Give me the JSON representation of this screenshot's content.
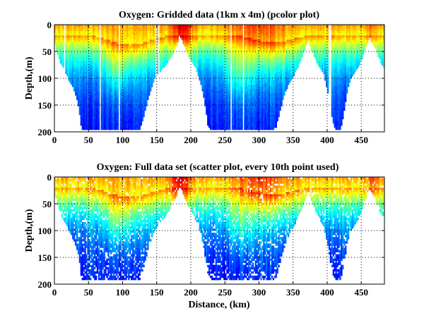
{
  "figure": {
    "xlabel_shared": "Distance, (km)"
  },
  "chart_data": [
    {
      "type": "heatmap",
      "id": "gridded",
      "title": "Oxygen: Gridded data (1km x 4m) (pcolor plot)",
      "xlabel": "",
      "ylabel": "Depth,(m)",
      "xlim": [
        0,
        484
      ],
      "ylim": [
        200,
        0
      ],
      "y_reversed": true,
      "xticks": [
        0,
        50,
        100,
        150,
        200,
        250,
        300,
        350,
        400,
        450
      ],
      "yticks": [
        0,
        50,
        100,
        150,
        200
      ],
      "grid": true,
      "colormap": "jet",
      "resolution": {
        "dx_km": 1,
        "dz_m": 4
      },
      "bottom_depth_profile": {
        "distance_km": [
          0,
          5,
          10,
          15,
          20,
          25,
          30,
          35,
          40,
          45,
          50,
          60,
          70,
          80,
          90,
          100,
          110,
          120,
          125,
          130,
          135,
          140,
          145,
          150,
          155,
          160,
          165,
          170,
          175,
          180,
          183,
          186,
          190,
          195,
          200,
          205,
          210,
          215,
          220,
          225,
          230,
          240,
          250,
          260,
          270,
          280,
          290,
          300,
          310,
          320,
          325,
          330,
          335,
          340,
          345,
          350,
          355,
          360,
          365,
          370,
          372,
          375,
          380,
          385,
          390,
          395,
          400,
          405,
          410,
          415,
          420,
          425,
          430,
          435,
          440,
          445,
          450,
          455,
          460,
          462,
          465,
          470,
          475,
          480,
          484
        ],
        "depth_m": [
          30,
          55,
          72,
          85,
          98,
          110,
          125,
          150,
          195,
          195,
          195,
          195,
          195,
          195,
          195,
          195,
          195,
          195,
          195,
          175,
          150,
          125,
          105,
          92,
          85,
          78,
          70,
          62,
          50,
          35,
          20,
          22,
          36,
          52,
          64,
          74,
          88,
          110,
          140,
          185,
          195,
          195,
          195,
          195,
          195,
          195,
          195,
          195,
          195,
          195,
          190,
          165,
          140,
          120,
          105,
          95,
          82,
          68,
          52,
          35,
          25,
          38,
          55,
          70,
          80,
          92,
          120,
          160,
          190,
          195,
          195,
          160,
          120,
          100,
          90,
          80,
          65,
          45,
          30,
          20,
          30,
          40,
          58,
          72,
          78
        ]
      },
      "value_pattern": "high oxygen (yellow/orange/red) in upper ~30 m, decreasing (cyan to dark blue) with depth; maximum (dark red) near 170-195 km at surface"
    },
    {
      "type": "scatter",
      "id": "scatter",
      "title": "Oxygen: Full data set (scatter plot, every 10th point used)",
      "xlabel": "Distance, (km)",
      "ylabel": "Depth,(m)",
      "xlim": [
        0,
        484
      ],
      "ylim": [
        200,
        0
      ],
      "y_reversed": true,
      "xticks": [
        0,
        50,
        100,
        150,
        200,
        250,
        300,
        350,
        400,
        450
      ],
      "yticks": [
        0,
        50,
        100,
        150,
        200
      ],
      "grid": true,
      "colormap": "jet",
      "sampling": "every 10th point",
      "bottom_depth_profile": {
        "distance_km": [
          0,
          5,
          10,
          15,
          20,
          25,
          30,
          35,
          40,
          45,
          50,
          60,
          70,
          80,
          90,
          100,
          110,
          120,
          125,
          130,
          135,
          140,
          145,
          150,
          155,
          160,
          165,
          170,
          175,
          180,
          183,
          186,
          190,
          195,
          200,
          205,
          210,
          215,
          220,
          225,
          230,
          240,
          250,
          260,
          270,
          280,
          290,
          300,
          310,
          320,
          325,
          330,
          335,
          340,
          345,
          350,
          355,
          360,
          365,
          370,
          372,
          375,
          380,
          385,
          390,
          395,
          400,
          405,
          410,
          415,
          420,
          425,
          430,
          435,
          440,
          445,
          450,
          455,
          460,
          462,
          465,
          470,
          475,
          480,
          484
        ],
        "depth_m": [
          28,
          52,
          70,
          82,
          95,
          108,
          122,
          145,
          190,
          190,
          190,
          190,
          190,
          190,
          190,
          190,
          190,
          190,
          190,
          170,
          145,
          122,
          102,
          90,
          82,
          75,
          68,
          58,
          46,
          32,
          18,
          20,
          34,
          50,
          62,
          72,
          86,
          108,
          138,
          180,
          190,
          190,
          190,
          190,
          190,
          190,
          190,
          190,
          190,
          190,
          186,
          162,
          138,
          118,
          102,
          92,
          80,
          65,
          50,
          32,
          22,
          35,
          52,
          68,
          78,
          90,
          118,
          158,
          188,
          192,
          190,
          155,
          118,
          98,
          88,
          78,
          62,
          42,
          28,
          18,
          28,
          38,
          55,
          68,
          74
        ]
      },
      "value_pattern": "same field as gridded plot, sampled as discrete points leaving white gaps"
    }
  ]
}
